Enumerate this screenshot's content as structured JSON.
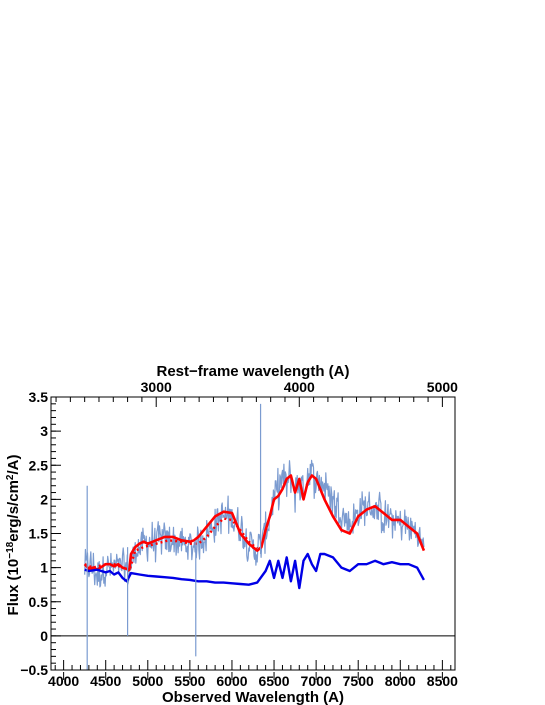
{
  "chart_data": {
    "type": "line",
    "title": "",
    "xlabel": "Observed Wavelength (A)",
    "ylabel": "Flux (10",
    "ylabel_exp1": "−18",
    "ylabel_mid": "erg/s/cm",
    "ylabel_exp2": "2",
    "ylabel_end": "/A)",
    "top_xlabel": "Rest−frame wavelength (A)",
    "xlim": [
      3850,
      8650
    ],
    "ylim": [
      -0.5,
      3.5
    ],
    "x_ticks": [
      "4000",
      "4500",
      "5000",
      "5500",
      "6000",
      "6500",
      "7000",
      "7500",
      "8000",
      "8500"
    ],
    "y_ticks": [
      "−0.5",
      "0",
      "0.5",
      "1",
      "1.5",
      "2",
      "2.5",
      "3",
      "3.5"
    ],
    "top_x_ticks": [
      "3000",
      "4000",
      "5000"
    ],
    "redshift_scale": 1.7,
    "zero_line": 0,
    "colors": {
      "observed": "#7b9bd0",
      "total_model": "#ff0000",
      "alt_model": "#ff0000",
      "component": "#0000e6",
      "frame": "#000000"
    },
    "series": [
      {
        "style": "observed-noisy",
        "x": [
          4250,
          4300,
          4400,
          4500,
          4600,
          4700,
          4780,
          4850,
          4950,
          5100,
          5250,
          5400,
          5500,
          5600,
          5700,
          5800,
          5900,
          6000,
          6100,
          6200,
          6300,
          6400,
          6500,
          6600,
          6650,
          6700,
          6750,
          6800,
          6850,
          6900,
          7000,
          7100,
          7200,
          7300,
          7400,
          7500,
          7600,
          7700,
          7800,
          7900,
          8000,
          8100,
          8200,
          8280
        ],
        "y": [
          1.0,
          1.05,
          0.9,
          1.0,
          1.0,
          1.0,
          0.95,
          1.25,
          1.35,
          1.4,
          1.4,
          1.35,
          1.3,
          1.35,
          1.5,
          1.65,
          1.75,
          1.75,
          1.6,
          1.35,
          1.25,
          1.5,
          2.0,
          2.3,
          2.2,
          2.35,
          2.1,
          2.25,
          2.1,
          2.4,
          2.3,
          2.2,
          2.0,
          1.8,
          1.65,
          1.8,
          1.9,
          1.85,
          1.75,
          1.7,
          1.65,
          1.6,
          1.5,
          1.3
        ]
      },
      {
        "style": "solid",
        "x": [
          4250,
          4300,
          4350,
          4400,
          4500,
          4550,
          4600,
          4650,
          4700,
          4780,
          4800,
          4850,
          4900,
          4950,
          5000,
          5100,
          5200,
          5300,
          5400,
          5500,
          5550,
          5600,
          5700,
          5800,
          5900,
          6000,
          6050,
          6100,
          6200,
          6300,
          6350,
          6400,
          6450,
          6500,
          6550,
          6600,
          6650,
          6700,
          6750,
          6800,
          6850,
          6900,
          6950,
          7000,
          7050,
          7100,
          7200,
          7300,
          7400,
          7500,
          7600,
          7700,
          7800,
          7900,
          8000,
          8100,
          8200,
          8280
        ],
        "y": [
          1.05,
          0.98,
          1.0,
          0.97,
          1.05,
          1.05,
          1.02,
          1.05,
          1.0,
          0.97,
          1.2,
          1.3,
          1.35,
          1.38,
          1.35,
          1.4,
          1.45,
          1.45,
          1.4,
          1.38,
          1.4,
          1.45,
          1.6,
          1.75,
          1.82,
          1.8,
          1.65,
          1.5,
          1.35,
          1.25,
          1.3,
          1.55,
          1.75,
          2.0,
          2.05,
          2.15,
          2.3,
          2.35,
          2.1,
          2.3,
          2.0,
          2.25,
          2.35,
          2.3,
          2.15,
          2.0,
          1.75,
          1.55,
          1.5,
          1.75,
          1.85,
          1.9,
          1.8,
          1.7,
          1.7,
          1.6,
          1.5,
          1.25
        ]
      },
      {
        "style": "dotted",
        "x": [
          4250,
          4350,
          4500,
          4600,
          4700,
          4780,
          4850,
          4950,
          5100,
          5250,
          5400,
          5500,
          5600,
          5700,
          5800,
          5900,
          6000,
          6100,
          6200,
          6300
        ],
        "y": [
          1.05,
          1.0,
          1.05,
          1.05,
          1.0,
          0.95,
          1.25,
          1.3,
          1.35,
          1.4,
          1.38,
          1.35,
          1.35,
          1.45,
          1.6,
          1.72,
          1.7,
          1.55,
          1.38,
          1.28
        ]
      },
      {
        "style": "solid",
        "x": [
          4250,
          4300,
          4400,
          4500,
          4550,
          4600,
          4650,
          4700,
          4750,
          4800,
          4900,
          5000,
          5100,
          5200,
          5300,
          5400,
          5500,
          5600,
          5700,
          5800,
          5900,
          6000,
          6100,
          6200,
          6300,
          6400,
          6450,
          6500,
          6550,
          6600,
          6650,
          6700,
          6750,
          6800,
          6850,
          6900,
          6950,
          7000,
          7050,
          7100,
          7200,
          7300,
          7400,
          7500,
          7600,
          7700,
          7800,
          7900,
          8000,
          8100,
          8200,
          8280
        ],
        "y": [
          0.97,
          0.95,
          0.97,
          0.93,
          0.95,
          0.9,
          0.93,
          0.85,
          0.8,
          0.92,
          0.9,
          0.88,
          0.87,
          0.86,
          0.85,
          0.83,
          0.82,
          0.8,
          0.8,
          0.78,
          0.78,
          0.77,
          0.76,
          0.75,
          0.78,
          0.95,
          1.1,
          0.85,
          1.1,
          0.85,
          1.15,
          0.8,
          1.1,
          0.7,
          1.1,
          1.2,
          1.05,
          0.95,
          1.2,
          1.2,
          1.15,
          1.0,
          0.95,
          1.05,
          1.05,
          1.1,
          1.05,
          1.08,
          1.05,
          1.05,
          1.0,
          0.82
        ]
      }
    ]
  }
}
